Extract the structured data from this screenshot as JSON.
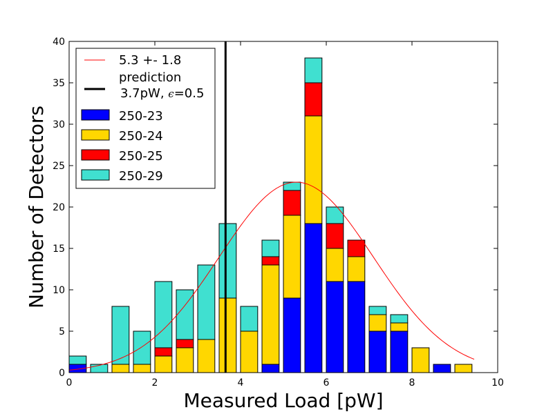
{
  "chart_data": {
    "type": "bar",
    "stacked": true,
    "xlabel": "Measured Load [pW]",
    "ylabel": "Number of Detectors",
    "xlim": [
      0,
      10
    ],
    "ylim": [
      0,
      40
    ],
    "xticks": [
      0,
      2,
      4,
      6,
      8,
      10
    ],
    "yticks": [
      0,
      5,
      10,
      15,
      20,
      25,
      30,
      35,
      40
    ],
    "bin_width": 0.5,
    "bar_width": 0.4,
    "bin_starts": [
      0,
      0.5,
      1.0,
      1.5,
      2.0,
      2.5,
      3.0,
      3.5,
      4.0,
      4.5,
      5.0,
      5.5,
      6.0,
      6.5,
      7.0,
      7.5,
      8.0,
      8.5,
      9.0
    ],
    "series": [
      {
        "name": "250-23",
        "color": "#0000ff",
        "values": [
          1,
          0,
          0,
          0,
          0,
          0,
          0,
          0,
          0,
          1,
          9,
          18,
          11,
          11,
          5,
          5,
          0,
          1,
          0
        ]
      },
      {
        "name": "250-24",
        "color": "#ffd700",
        "values": [
          0,
          0,
          1,
          1,
          2,
          3,
          4,
          9,
          5,
          12,
          10,
          13,
          4,
          3,
          2,
          1,
          3,
          0,
          1
        ]
      },
      {
        "name": "250-25",
        "color": "#ff0000",
        "values": [
          0,
          0,
          0,
          0,
          1,
          1,
          0,
          0,
          0,
          1,
          3,
          4,
          3,
          2,
          0,
          0,
          0,
          0,
          0
        ]
      },
      {
        "name": "250-29",
        "color": "#40e0d0",
        "values": [
          1,
          1,
          7,
          4,
          8,
          6,
          9,
          9,
          3,
          2,
          1,
          3,
          2,
          0,
          1,
          1,
          0,
          0,
          0
        ]
      }
    ],
    "fit_curve": {
      "label": "5.3 +- 1.8",
      "color": "#ff0000",
      "mean": 5.3,
      "sigma": 1.8,
      "amplitude": 23,
      "x_range": [
        0,
        9.45
      ]
    },
    "prediction_line": {
      "label_line1": "prediction",
      "label_line2": "3.7pW, ",
      "label_symbol": "ϵ",
      "label_suffix": "=0.5",
      "x": 3.65,
      "color": "#000000"
    },
    "legend": {
      "placement": "top-left"
    },
    "grid": false
  }
}
